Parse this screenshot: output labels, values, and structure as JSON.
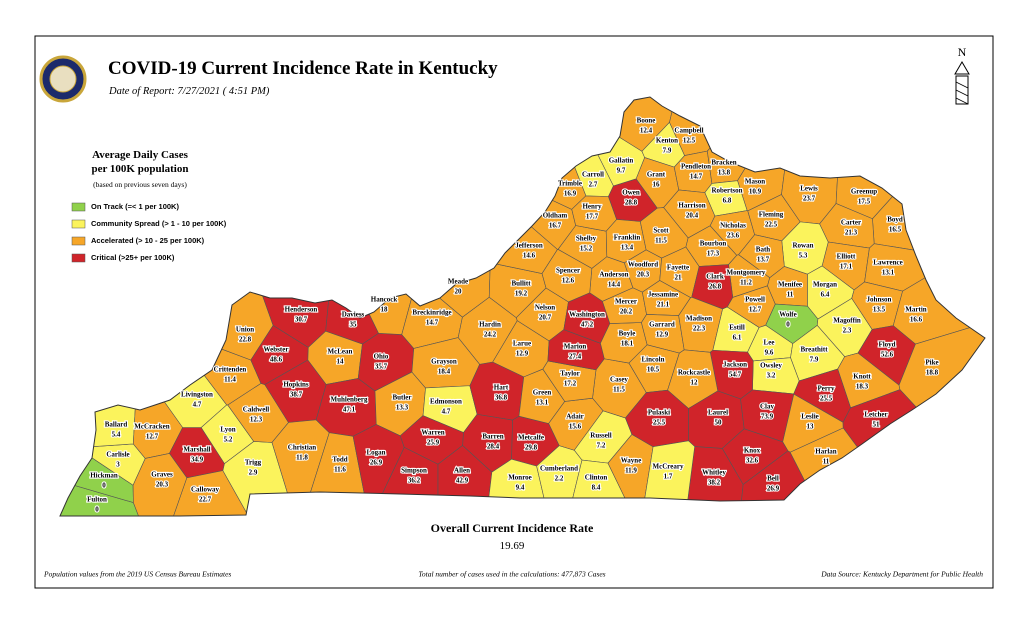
{
  "title": "COVID-19 Current Incidence Rate in Kentucky",
  "date": "Date of Report: 7/27/2021 ( 4:51 PM)",
  "north": "N",
  "legend": {
    "title_lines": [
      "Average Daily Cases",
      "per 100K population"
    ],
    "note": "(based on previous seven days)",
    "items": [
      {
        "label": "On Track (=< 1 per 100K)",
        "color": "#90d14b"
      },
      {
        "label": "Community Spread (> 1 - 10 per 100K)",
        "color": "#fbf35c"
      },
      {
        "label": "Accelerated (> 10 - 25 per 100K)",
        "color": "#f6a628"
      },
      {
        "label": "Critical (>25+ per 100K)",
        "color": "#d0242a"
      }
    ]
  },
  "counties": [
    {
      "name": "Fulton",
      "value": 0,
      "color": "#90d14b"
    },
    {
      "name": "Hickman",
      "value": 0,
      "color": "#90d14b"
    },
    {
      "name": "Carlisle",
      "value": 3,
      "color": "#fbf35c"
    },
    {
      "name": "Ballard",
      "value": 5.4,
      "color": "#fbf35c"
    },
    {
      "name": "McCracken",
      "value": 12.7,
      "color": "#f6a628"
    },
    {
      "name": "Marshall",
      "value": 34.9,
      "color": "#d0242a"
    },
    {
      "name": "Graves",
      "value": 20.3,
      "color": "#f6a628"
    },
    {
      "name": "Calloway",
      "value": 22.7,
      "color": "#f6a628"
    },
    {
      "name": "Livingston",
      "value": 4.7,
      "color": "#fbf35c"
    },
    {
      "name": "Lyon",
      "value": 5.2,
      "color": "#fbf35c"
    },
    {
      "name": "Trigg",
      "value": 2.9,
      "color": "#fbf35c"
    },
    {
      "name": "Caldwell",
      "value": 12.3,
      "color": "#f6a628"
    },
    {
      "name": "Crittenden",
      "value": 11.4,
      "color": "#f6a628"
    },
    {
      "name": "Union",
      "value": 22.8,
      "color": "#f6a628"
    },
    {
      "name": "Webster",
      "value": 48.6,
      "color": "#d0242a"
    },
    {
      "name": "Henderson",
      "value": 30.7,
      "color": "#d0242a"
    },
    {
      "name": "Hopkins",
      "value": 38.7,
      "color": "#d0242a"
    },
    {
      "name": "Christian",
      "value": 11.8,
      "color": "#f6a628"
    },
    {
      "name": "Daviess",
      "value": 35,
      "color": "#d0242a"
    },
    {
      "name": "McLean",
      "value": 14,
      "color": "#f6a628"
    },
    {
      "name": "Muhlenberg",
      "value": 47.1,
      "color": "#d0242a"
    },
    {
      "name": "Ohio",
      "value": 35.7,
      "color": "#d0242a"
    },
    {
      "name": "Hancock",
      "value": 18,
      "color": "#f6a628"
    },
    {
      "name": "Breckinridge",
      "value": 14.7,
      "color": "#f6a628"
    },
    {
      "name": "Butler",
      "value": 13.3,
      "color": "#f6a628"
    },
    {
      "name": "Todd",
      "value": 11.6,
      "color": "#f6a628"
    },
    {
      "name": "Logan",
      "value": 26.9,
      "color": "#d0242a"
    },
    {
      "name": "Grayson",
      "value": 18.4,
      "color": "#f6a628"
    },
    {
      "name": "Edmonson",
      "value": 4.7,
      "color": "#fbf35c"
    },
    {
      "name": "Warren",
      "value": 25.9,
      "color": "#d0242a"
    },
    {
      "name": "Simpson",
      "value": 36.2,
      "color": "#d0242a"
    },
    {
      "name": "Allen",
      "value": 42.9,
      "color": "#d0242a"
    },
    {
      "name": "Barren",
      "value": 28.4,
      "color": "#d0242a"
    },
    {
      "name": "Hart",
      "value": 36.8,
      "color": "#d0242a"
    },
    {
      "name": "Metcalfe",
      "value": 29.8,
      "color": "#d0242a"
    },
    {
      "name": "Monroe",
      "value": 9.4,
      "color": "#fbf35c"
    },
    {
      "name": "Cumberland",
      "value": 2.2,
      "color": "#fbf35c"
    },
    {
      "name": "Green",
      "value": 13.1,
      "color": "#f6a628"
    },
    {
      "name": "Adair",
      "value": 15.6,
      "color": "#f6a628"
    },
    {
      "name": "Russell",
      "value": 7.2,
      "color": "#fbf35c"
    },
    {
      "name": "Clinton",
      "value": 8.4,
      "color": "#fbf35c"
    },
    {
      "name": "Wayne",
      "value": 11.9,
      "color": "#f6a628"
    },
    {
      "name": "Casey",
      "value": 11.5,
      "color": "#f6a628"
    },
    {
      "name": "Taylor",
      "value": 17.2,
      "color": "#f6a628"
    },
    {
      "name": "Larue",
      "value": 12.9,
      "color": "#f6a628"
    },
    {
      "name": "Hardin",
      "value": 24.2,
      "color": "#f6a628"
    },
    {
      "name": "Meade",
      "value": 20,
      "color": "#f6a628"
    },
    {
      "name": "Bullitt",
      "value": 19.2,
      "color": "#f6a628"
    },
    {
      "name": "Jefferson",
      "value": 14.6,
      "color": "#f6a628"
    },
    {
      "name": "Nelson",
      "value": 20.7,
      "color": "#f6a628"
    },
    {
      "name": "Marion",
      "value": 27.4,
      "color": "#d0242a"
    },
    {
      "name": "Washington",
      "value": 47.2,
      "color": "#d0242a"
    },
    {
      "name": "Boyle",
      "value": 18.1,
      "color": "#f6a628"
    },
    {
      "name": "Mercer",
      "value": 20.2,
      "color": "#f6a628"
    },
    {
      "name": "Anderson",
      "value": 14.4,
      "color": "#f6a628"
    },
    {
      "name": "Spencer",
      "value": 12.6,
      "color": "#f6a628"
    },
    {
      "name": "Shelby",
      "value": 15.2,
      "color": "#f6a628"
    },
    {
      "name": "Oldham",
      "value": 16.7,
      "color": "#f6a628"
    },
    {
      "name": "Trimble",
      "value": 16.9,
      "color": "#f6a628"
    },
    {
      "name": "Henry",
      "value": 17.7,
      "color": "#f6a628"
    },
    {
      "name": "Carroll",
      "value": 2.7,
      "color": "#fbf35c"
    },
    {
      "name": "Owen",
      "value": 28.8,
      "color": "#d0242a"
    },
    {
      "name": "Gallatin",
      "value": 9.7,
      "color": "#fbf35c"
    },
    {
      "name": "Boone",
      "value": 12.4,
      "color": "#f6a628"
    },
    {
      "name": "Kenton",
      "value": 7.9,
      "color": "#fbf35c"
    },
    {
      "name": "Campbell",
      "value": 12.5,
      "color": "#f6a628"
    },
    {
      "name": "Grant",
      "value": 16,
      "color": "#f6a628"
    },
    {
      "name": "Pendleton",
      "value": 14.7,
      "color": "#f6a628"
    },
    {
      "name": "Bracken",
      "value": 13.8,
      "color": "#f6a628"
    },
    {
      "name": "Mason",
      "value": 10.9,
      "color": "#f6a628"
    },
    {
      "name": "Robertson",
      "value": 6.8,
      "color": "#fbf35c"
    },
    {
      "name": "Harrison",
      "value": 20.4,
      "color": "#f6a628"
    },
    {
      "name": "Franklin",
      "value": 13.4,
      "color": "#f6a628"
    },
    {
      "name": "Scott",
      "value": 11.5,
      "color": "#f6a628"
    },
    {
      "name": "Woodford",
      "value": 20.3,
      "color": "#f6a628"
    },
    {
      "name": "Fayette",
      "value": 21,
      "color": "#f6a628"
    },
    {
      "name": "Jessamine",
      "value": 21.1,
      "color": "#f6a628"
    },
    {
      "name": "Garrard",
      "value": 12.9,
      "color": "#f6a628"
    },
    {
      "name": "Lincoln",
      "value": 10.5,
      "color": "#f6a628"
    },
    {
      "name": "Bourbon",
      "value": 17.3,
      "color": "#f6a628"
    },
    {
      "name": "Nicholas",
      "value": 23.6,
      "color": "#f6a628"
    },
    {
      "name": "Fleming",
      "value": 22.5,
      "color": "#f6a628"
    },
    {
      "name": "Lewis",
      "value": 23.7,
      "color": "#f6a628"
    },
    {
      "name": "Greenup",
      "value": 17.5,
      "color": "#f6a628"
    },
    {
      "name": "Boyd",
      "value": 16.5,
      "color": "#f6a628"
    },
    {
      "name": "Carter",
      "value": 21.3,
      "color": "#f6a628"
    },
    {
      "name": "Elliott",
      "value": 17.1,
      "color": "#f6a628"
    },
    {
      "name": "Lawrence",
      "value": 13.1,
      "color": "#f6a628"
    },
    {
      "name": "Rowan",
      "value": 5.3,
      "color": "#fbf35c"
    },
    {
      "name": "Bath",
      "value": 13.7,
      "color": "#f6a628"
    },
    {
      "name": "Montgomery",
      "value": 11.2,
      "color": "#f6a628"
    },
    {
      "name": "Clark",
      "value": 26.8,
      "color": "#d0242a"
    },
    {
      "name": "Madison",
      "value": 22.3,
      "color": "#f6a628"
    },
    {
      "name": "Estill",
      "value": 6.1,
      "color": "#fbf35c"
    },
    {
      "name": "Powell",
      "value": 12.7,
      "color": "#f6a628"
    },
    {
      "name": "Menifee",
      "value": 11,
      "color": "#f6a628"
    },
    {
      "name": "Morgan",
      "value": 6.4,
      "color": "#fbf35c"
    },
    {
      "name": "Wolfe",
      "value": 0,
      "color": "#90d14b"
    },
    {
      "name": "Magoffin",
      "value": 2.3,
      "color": "#fbf35c"
    },
    {
      "name": "Johnson",
      "value": 13.5,
      "color": "#f6a628"
    },
    {
      "name": "Martin",
      "value": 16.6,
      "color": "#f6a628"
    },
    {
      "name": "Lee",
      "value": 9.6,
      "color": "#fbf35c"
    },
    {
      "name": "Breathitt",
      "value": 7.9,
      "color": "#fbf35c"
    },
    {
      "name": "Floyd",
      "value": 52.6,
      "color": "#d0242a"
    },
    {
      "name": "Owsley",
      "value": 3.2,
      "color": "#fbf35c"
    },
    {
      "name": "Jackson",
      "value": 54.7,
      "color": "#d0242a"
    },
    {
      "name": "Rockcastle",
      "value": 12,
      "color": "#f6a628"
    },
    {
      "name": "Pulaski",
      "value": 25.5,
      "color": "#d0242a"
    },
    {
      "name": "Laurel",
      "value": 50,
      "color": "#d0242a"
    },
    {
      "name": "Clay",
      "value": 73.9,
      "color": "#d0242a"
    },
    {
      "name": "Knott",
      "value": 18.3,
      "color": "#f6a628"
    },
    {
      "name": "Pike",
      "value": 18.8,
      "color": "#f6a628"
    },
    {
      "name": "Perry",
      "value": 25.5,
      "color": "#d0242a"
    },
    {
      "name": "Leslie",
      "value": 13,
      "color": "#f6a628"
    },
    {
      "name": "Letcher",
      "value": 51,
      "color": "#d0242a"
    },
    {
      "name": "Knox",
      "value": 32.6,
      "color": "#d0242a"
    },
    {
      "name": "Whitley",
      "value": 38.2,
      "color": "#d0242a"
    },
    {
      "name": "Bell",
      "value": 26.9,
      "color": "#d0242a"
    },
    {
      "name": "Harlan",
      "value": 11,
      "color": "#f6a628"
    },
    {
      "name": "McCreary",
      "value": 1.7,
      "color": "#fbf35c"
    }
  ],
  "overall": {
    "label": "Overall Current Incidence Rate",
    "value": 19.69
  },
  "footer": {
    "left": "Population values from the 2019 US Census Bureau Estimates",
    "center": "Total number of cases used in the calculations: 477,873 Cases",
    "right": "Data Source: Kentucky Department for Public Health"
  }
}
